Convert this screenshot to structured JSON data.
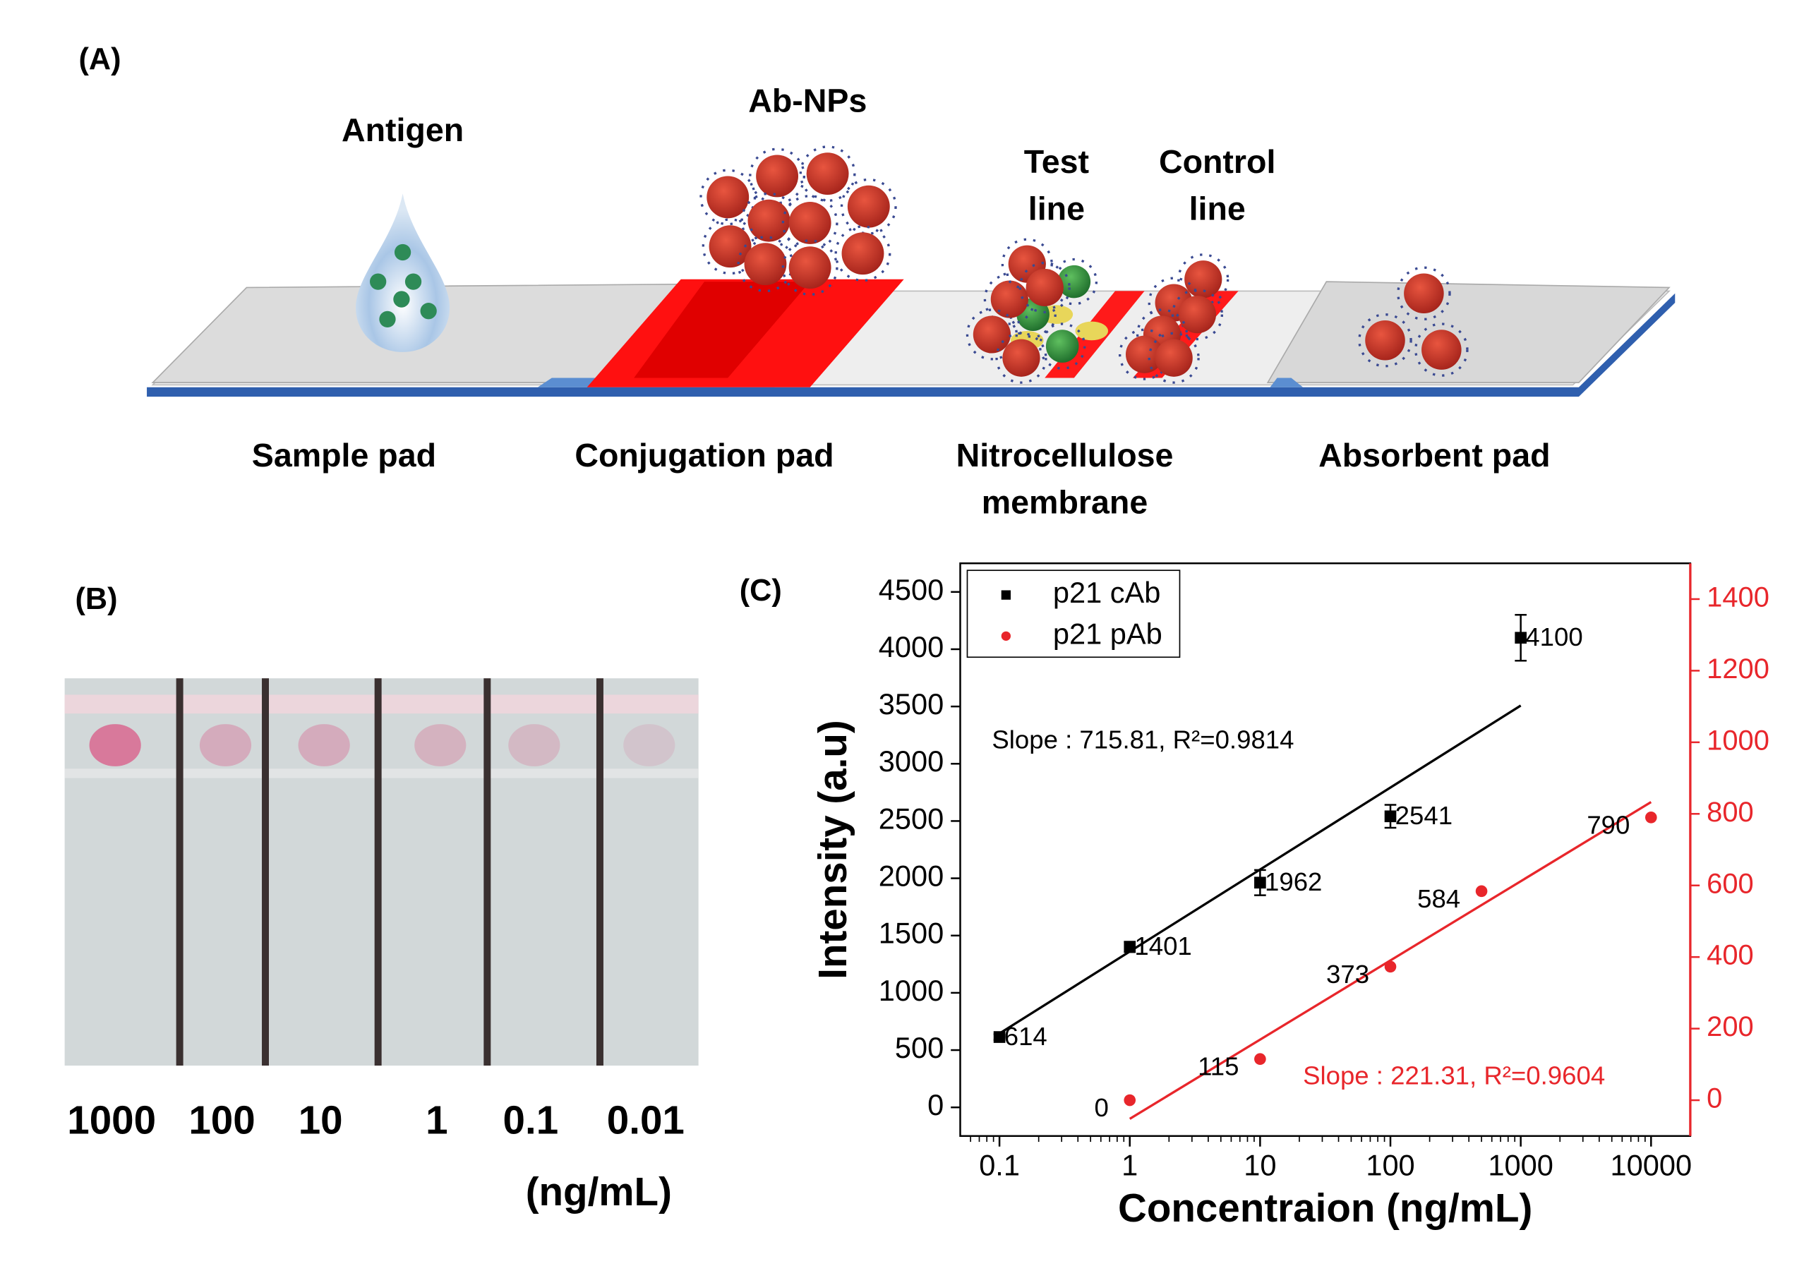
{
  "panels": {
    "a": "(A)",
    "b": "(B)",
    "c": "(C)"
  },
  "diagram": {
    "antigen": "Antigen",
    "ab_nps": "Ab-NPs",
    "test_line": [
      "Test",
      "line"
    ],
    "control_line": [
      "Control",
      "line"
    ],
    "pads": {
      "sample": "Sample pad",
      "conjugation": "Conjugation pad",
      "nitrocellulose": [
        "Nitrocellulose",
        "membrane"
      ],
      "absorbent": "Absorbent pad"
    }
  },
  "strip": {
    "concentrations": [
      "1000",
      "100",
      "10",
      "1",
      "0.1",
      "0.01"
    ],
    "unit": "(ng/mL)"
  },
  "chart_data": {
    "type": "scatter",
    "xlabel": "Concentraion (ng/mL)",
    "ylabel": "Intensity (a.u)",
    "x_log": true,
    "xlim": [
      0.05,
      20000
    ],
    "xticks": [
      0.1,
      1,
      10,
      100,
      1000,
      10000
    ],
    "ylim": [
      -250,
      4750
    ],
    "yticks": [
      0,
      500,
      1000,
      1500,
      2000,
      2500,
      3000,
      3500,
      4000,
      4500
    ],
    "y2lim": [
      -100,
      1500
    ],
    "y2ticks": [
      0,
      200,
      400,
      600,
      800,
      1000,
      1200,
      1400
    ],
    "y2_color": "#e8262b",
    "legend": "top-left",
    "series": [
      {
        "name": "p21 cAb",
        "color": "#000000",
        "marker": "square",
        "x": [
          0.1,
          1,
          10,
          100,
          1000
        ],
        "values": [
          614,
          1401,
          1962,
          2541,
          4100
        ],
        "errors": [
          25,
          45,
          110,
          100,
          200
        ],
        "fit": {
          "x": [
            0.1,
            1000
          ],
          "values": [
            645,
            3508
          ]
        }
      },
      {
        "name": "p21 pAb",
        "color": "#e8262b",
        "marker": "circle",
        "axis": "y2",
        "x": [
          1,
          10,
          100,
          500,
          10000
        ],
        "values": [
          0,
          115,
          373,
          584,
          790
        ],
        "fit": {
          "x": [
            1,
            10000
          ],
          "values": [
            -52,
            833
          ]
        }
      }
    ],
    "annotations": [
      {
        "text": "Slope : 715.81, R²=0.9814",
        "color": "#000000"
      },
      {
        "text": "Slope : 221.31, R²=0.9604",
        "color": "#e8262b"
      }
    ]
  }
}
